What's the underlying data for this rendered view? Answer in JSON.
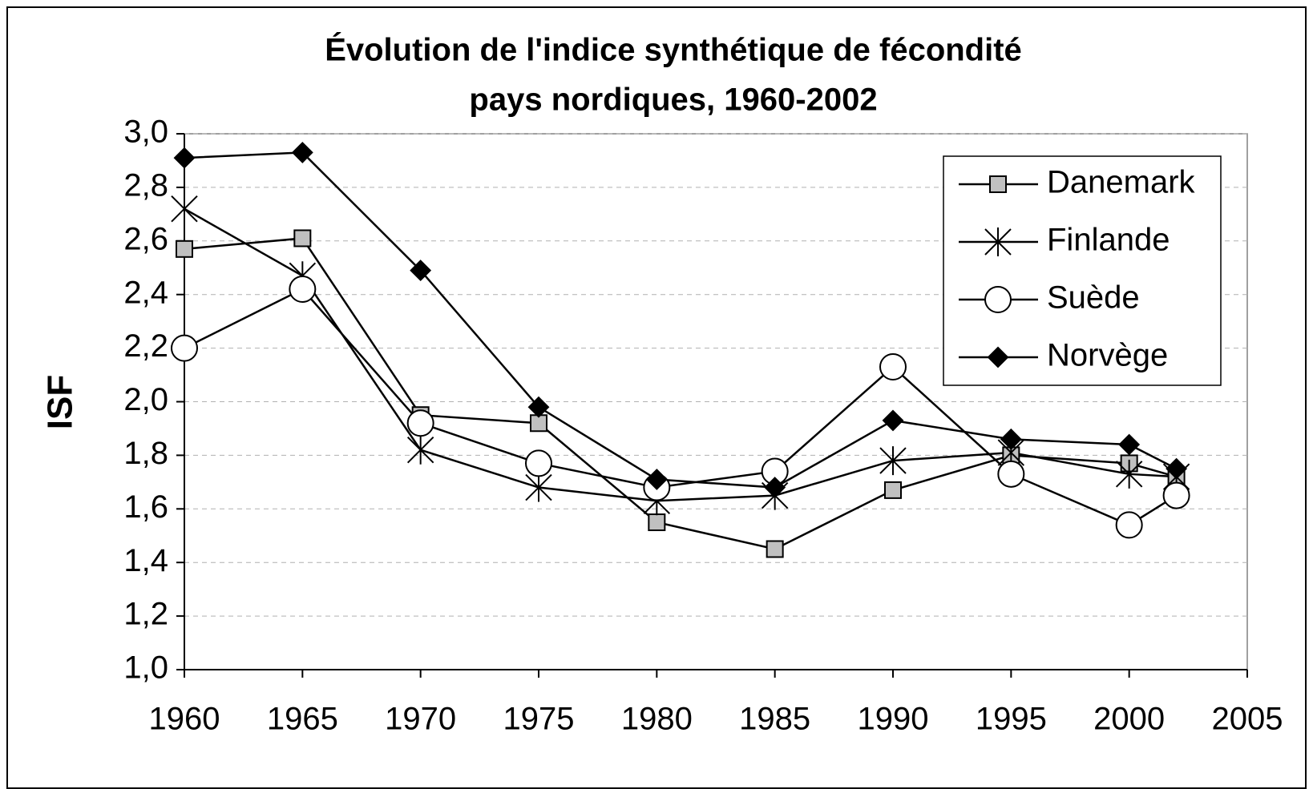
{
  "chart_data": {
    "type": "line",
    "title": [
      "Évolution de l'indice synthétique de fécondité",
      "pays nordiques, 1960-2002"
    ],
    "ylabel": "ISF",
    "x": [
      1960,
      1965,
      1970,
      1975,
      1980,
      1985,
      1990,
      1995,
      2000,
      2002
    ],
    "series": [
      {
        "name": "Danemark",
        "color": "#c0c0c0",
        "marker": "square",
        "values": [
          2.57,
          2.61,
          1.95,
          1.92,
          1.55,
          1.45,
          1.67,
          1.8,
          1.77,
          1.72
        ]
      },
      {
        "name": "Finlande",
        "color": "#000000",
        "marker": "star",
        "values": [
          2.72,
          2.47,
          1.82,
          1.68,
          1.63,
          1.65,
          1.78,
          1.81,
          1.73,
          1.72
        ]
      },
      {
        "name": "Suède",
        "color": "#ffffff",
        "marker": "circle",
        "values": [
          2.2,
          2.42,
          1.92,
          1.77,
          1.68,
          1.74,
          2.13,
          1.73,
          1.54,
          1.65
        ]
      },
      {
        "name": "Norvège",
        "color": "#000000",
        "marker": "diamond",
        "values": [
          2.91,
          2.93,
          2.49,
          1.98,
          1.71,
          1.68,
          1.93,
          1.86,
          1.84,
          1.75
        ]
      }
    ],
    "xlim": [
      1960,
      2005
    ],
    "xticks": [
      1960,
      1965,
      1970,
      1975,
      1980,
      1985,
      1990,
      1995,
      2000,
      2005
    ],
    "ylim": [
      1.0,
      3.0
    ],
    "yticks": [
      {
        "value": 1.0,
        "label": "1,0"
      },
      {
        "value": 1.2,
        "label": "1,2"
      },
      {
        "value": 1.4,
        "label": "1,4"
      },
      {
        "value": 1.6,
        "label": "1,6"
      },
      {
        "value": 1.8,
        "label": "1,8"
      },
      {
        "value": 2.0,
        "label": "2,0"
      },
      {
        "value": 2.2,
        "label": "2,2"
      },
      {
        "value": 2.4,
        "label": "2,4"
      },
      {
        "value": 2.6,
        "label": "2,6"
      },
      {
        "value": 2.8,
        "label": "2,8"
      },
      {
        "value": 3.0,
        "label": "3,0"
      }
    ],
    "grid": true,
    "legend": "upper right"
  }
}
